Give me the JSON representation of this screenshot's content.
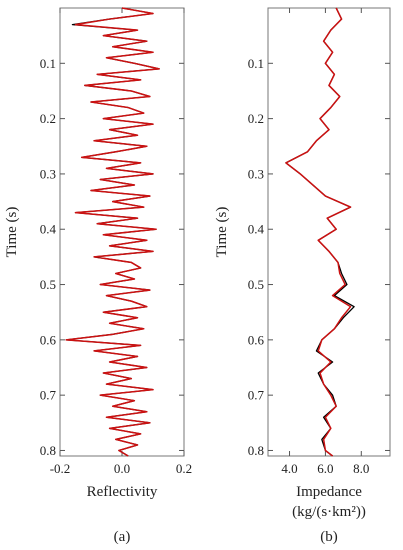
{
  "chart_data": [
    {
      "type": "line",
      "panel_label": "(a)",
      "xlabel": "Reflectivity",
      "ylabel": "Time (s)",
      "xlim": [
        -0.2,
        0.2
      ],
      "ylim": [
        0.0,
        0.81
      ],
      "y_reversed": true,
      "x_ticks": [
        "-0.2",
        "0.0",
        "0.2"
      ],
      "x_tick_values": [
        -0.2,
        0.0,
        0.2
      ],
      "y_ticks": [
        "0.1",
        "0.2",
        "0.3",
        "0.4",
        "0.5",
        "0.6",
        "0.7",
        "0.8"
      ],
      "y_tick_values": [
        0.1,
        0.2,
        0.3,
        0.4,
        0.5,
        0.6,
        0.7,
        0.8
      ],
      "colors": {
        "true": "#000000",
        "estimated": "#cc1111"
      },
      "series": [
        {
          "y": [
            0.0,
            0.01,
            0.02,
            0.03,
            0.04,
            0.05,
            0.06,
            0.07,
            0.08,
            0.09,
            0.1,
            0.11,
            0.12,
            0.13,
            0.14,
            0.15,
            0.16,
            0.17,
            0.18,
            0.19,
            0.2,
            0.21,
            0.22,
            0.23,
            0.24,
            0.25,
            0.26,
            0.27,
            0.28,
            0.29,
            0.3,
            0.31,
            0.32,
            0.33,
            0.34,
            0.35,
            0.36,
            0.37,
            0.38,
            0.39,
            0.4,
            0.41,
            0.42,
            0.43,
            0.44,
            0.45,
            0.46,
            0.47,
            0.48,
            0.49,
            0.5,
            0.51,
            0.52,
            0.53,
            0.54,
            0.55,
            0.56,
            0.57,
            0.58,
            0.59,
            0.6,
            0.61,
            0.62,
            0.63,
            0.64,
            0.65,
            0.66,
            0.67,
            0.68,
            0.69,
            0.7,
            0.71,
            0.72,
            0.73,
            0.74,
            0.75,
            0.76,
            0.77,
            0.78,
            0.79,
            0.8,
            0.81
          ],
          "x": [
            0.0,
            0.1,
            -0.04,
            -0.16,
            0.05,
            -0.06,
            0.08,
            -0.03,
            0.1,
            -0.05,
            0.04,
            0.12,
            -0.08,
            0.06,
            -0.12,
            0.03,
            0.09,
            -0.1,
            0.02,
            0.07,
            -0.06,
            0.1,
            -0.04,
            0.05,
            -0.09,
            0.08,
            -0.02,
            -0.13,
            0.06,
            -0.05,
            0.1,
            -0.07,
            0.04,
            -0.1,
            0.09,
            -0.03,
            0.07,
            -0.15,
            0.05,
            -0.08,
            0.11,
            -0.06,
            0.08,
            -0.04,
            0.1,
            -0.09,
            0.03,
            0.06,
            -0.02,
            0.04,
            -0.07,
            0.09,
            -0.05,
            0.03,
            0.08,
            -0.06,
            0.05,
            -0.04,
            0.07,
            -0.03,
            -0.18,
            0.06,
            -0.09,
            0.05,
            -0.04,
            0.08,
            -0.06,
            0.03,
            -0.05,
            0.1,
            -0.07,
            0.04,
            -0.03,
            0.08,
            -0.05,
            0.09,
            -0.04,
            0.06,
            -0.02,
            0.05,
            -0.01,
            0.02
          ]
        },
        {
          "y": [
            0.0,
            0.01,
            0.02,
            0.03,
            0.04,
            0.05,
            0.06,
            0.07,
            0.08,
            0.09,
            0.1,
            0.11,
            0.12,
            0.13,
            0.14,
            0.15,
            0.16,
            0.17,
            0.18,
            0.19,
            0.2,
            0.21,
            0.22,
            0.23,
            0.24,
            0.25,
            0.26,
            0.27,
            0.28,
            0.29,
            0.3,
            0.31,
            0.32,
            0.33,
            0.34,
            0.35,
            0.36,
            0.37,
            0.38,
            0.39,
            0.4,
            0.41,
            0.42,
            0.43,
            0.44,
            0.45,
            0.46,
            0.47,
            0.48,
            0.49,
            0.5,
            0.51,
            0.52,
            0.53,
            0.54,
            0.55,
            0.56,
            0.57,
            0.58,
            0.59,
            0.6,
            0.61,
            0.62,
            0.63,
            0.64,
            0.65,
            0.66,
            0.67,
            0.68,
            0.69,
            0.7,
            0.71,
            0.72,
            0.73,
            0.74,
            0.75,
            0.76,
            0.77,
            0.78,
            0.79,
            0.8,
            0.81
          ],
          "x": [
            0.0,
            0.1,
            -0.04,
            -0.15,
            0.05,
            -0.06,
            0.08,
            -0.03,
            0.1,
            -0.05,
            0.04,
            0.12,
            -0.08,
            0.06,
            -0.12,
            0.03,
            0.09,
            -0.1,
            0.02,
            0.07,
            -0.06,
            0.1,
            -0.04,
            0.05,
            -0.09,
            0.08,
            -0.02,
            -0.13,
            0.06,
            -0.05,
            0.1,
            -0.07,
            0.04,
            -0.1,
            0.09,
            -0.03,
            0.07,
            -0.15,
            0.05,
            -0.08,
            0.11,
            -0.06,
            0.08,
            -0.04,
            0.1,
            -0.09,
            0.03,
            0.06,
            -0.02,
            0.04,
            -0.07,
            0.09,
            -0.05,
            0.03,
            0.08,
            -0.06,
            0.05,
            -0.04,
            0.07,
            -0.03,
            -0.18,
            0.06,
            -0.09,
            0.05,
            -0.04,
            0.08,
            -0.06,
            0.03,
            -0.05,
            0.1,
            -0.07,
            0.04,
            -0.03,
            0.08,
            -0.05,
            0.09,
            -0.04,
            0.06,
            -0.02,
            0.05,
            -0.01,
            0.02
          ]
        }
      ]
    },
    {
      "type": "line",
      "panel_label": "(b)",
      "xlabel": "Impedance",
      "xlabel_unit": "(kg/(s·km²))",
      "ylabel": "Time (s)",
      "xlim": [
        2.8,
        9.6
      ],
      "ylim": [
        0.0,
        0.81
      ],
      "y_reversed": true,
      "x_ticks": [
        "4.0",
        "6.0",
        "8.0"
      ],
      "x_tick_values": [
        4.0,
        6.0,
        8.0
      ],
      "y_ticks": [
        "0.1",
        "0.2",
        "0.3",
        "0.4",
        "0.5",
        "0.6",
        "0.7",
        "0.8"
      ],
      "y_tick_values": [
        0.1,
        0.2,
        0.3,
        0.4,
        0.5,
        0.6,
        0.7,
        0.8
      ],
      "colors": {
        "true": "#000000",
        "estimated": "#cc1111"
      },
      "series": [
        {
          "y": [
            0.0,
            0.02,
            0.04,
            0.06,
            0.08,
            0.1,
            0.12,
            0.14,
            0.16,
            0.18,
            0.2,
            0.22,
            0.24,
            0.26,
            0.28,
            0.3,
            0.32,
            0.34,
            0.36,
            0.38,
            0.4,
            0.42,
            0.44,
            0.46,
            0.48,
            0.5,
            0.52,
            0.54,
            0.56,
            0.58,
            0.6,
            0.62,
            0.64,
            0.66,
            0.68,
            0.7,
            0.72,
            0.74,
            0.76,
            0.78,
            0.8,
            0.81
          ],
          "x": [
            6.6,
            6.9,
            6.3,
            5.9,
            6.4,
            6.0,
            6.5,
            6.2,
            6.8,
            6.3,
            5.7,
            6.2,
            5.5,
            5.0,
            3.8,
            4.6,
            5.3,
            6.0,
            7.4,
            6.1,
            6.6,
            5.6,
            6.2,
            6.7,
            6.9,
            7.2,
            6.5,
            7.6,
            7.0,
            6.5,
            5.8,
            5.5,
            6.4,
            5.6,
            5.9,
            6.4,
            6.6,
            5.9,
            6.3,
            5.8,
            6.0,
            6.4
          ]
        },
        {
          "y": [
            0.0,
            0.02,
            0.04,
            0.06,
            0.08,
            0.1,
            0.12,
            0.14,
            0.16,
            0.18,
            0.2,
            0.22,
            0.24,
            0.26,
            0.28,
            0.3,
            0.32,
            0.34,
            0.36,
            0.38,
            0.4,
            0.42,
            0.44,
            0.46,
            0.48,
            0.5,
            0.52,
            0.54,
            0.56,
            0.58,
            0.6,
            0.62,
            0.64,
            0.66,
            0.68,
            0.7,
            0.72,
            0.74,
            0.76,
            0.78,
            0.8,
            0.81
          ],
          "x": [
            6.6,
            6.9,
            6.3,
            5.9,
            6.4,
            6.0,
            6.5,
            6.2,
            6.8,
            6.3,
            5.7,
            6.2,
            5.5,
            5.0,
            3.8,
            4.6,
            5.3,
            6.0,
            7.4,
            6.1,
            6.6,
            5.6,
            6.2,
            6.7,
            6.8,
            7.1,
            6.4,
            7.4,
            6.9,
            6.5,
            5.8,
            5.6,
            6.3,
            5.7,
            5.9,
            6.3,
            6.6,
            6.0,
            6.3,
            5.9,
            6.0,
            6.4
          ]
        }
      ]
    }
  ]
}
